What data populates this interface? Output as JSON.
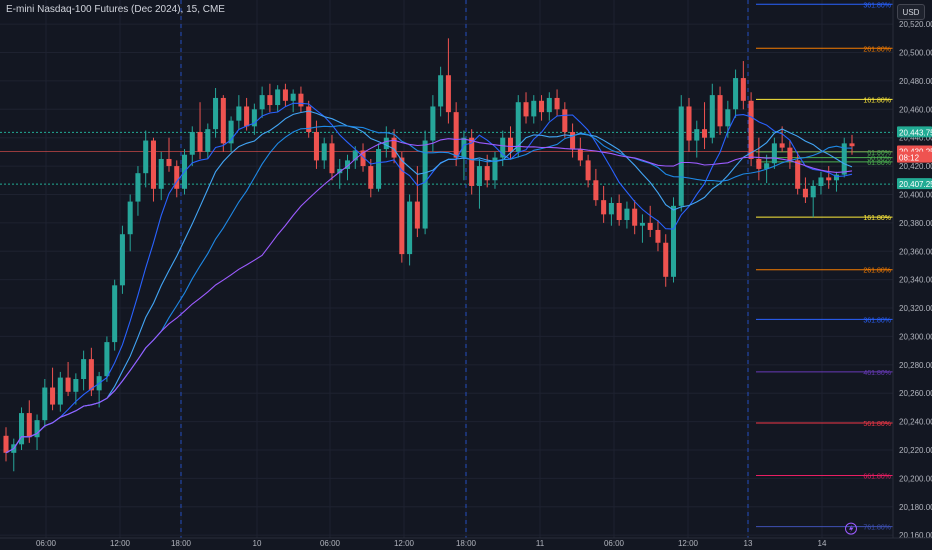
{
  "header": {
    "symbol_title": "E-mini Nasdaq-100 Futures (Dec 2024), 15, CME",
    "currency": "USD"
  },
  "colors": {
    "background": "#131722",
    "grid": "#1e2230",
    "up": "#26a69a",
    "down": "#ef5350",
    "axis_text": "#b2b5be",
    "price_line": "#ef5350",
    "green_label": "#22ab94"
  },
  "chart_data": {
    "type": "candlestick",
    "title": "E-mini Nasdaq-100 Futures (Dec 2024), 15, CME",
    "x_ticks": [
      "06:00",
      "12:00",
      "18:00",
      "10",
      "06:00",
      "12:00",
      "18:00",
      "11",
      "06:00",
      "12:00",
      "13",
      "14"
    ],
    "y_ticks": [
      "20,520.00",
      "20,500.00",
      "20,480.00",
      "20,460.00",
      "20,440.00",
      "20,420.00",
      "20,400.00",
      "20,380.00",
      "20,360.00",
      "20,340.00",
      "20,320.00",
      "20,300.00",
      "20,280.00",
      "20,260.00",
      "20,240.00",
      "20,220.00",
      "20,200.00",
      "20,180.00",
      "20,160.00"
    ],
    "y_tick_values": [
      20520,
      20500,
      20480,
      20460,
      20440,
      20420,
      20400,
      20380,
      20360,
      20340,
      20320,
      20300,
      20280,
      20260,
      20240,
      20220,
      20200,
      20180,
      20160
    ],
    "ylim": [
      20158,
      20537
    ],
    "price_labels": [
      {
        "text": "20,443.75",
        "value": 20443.75,
        "color": "#22ab94"
      },
      {
        "text": "20,430.25",
        "value": 20430.25,
        "color": "#ef5350"
      },
      {
        "text": "08:12",
        "value": 20426.0,
        "color": "#ef5350"
      },
      {
        "text": "20,407.25",
        "value": 20407.25,
        "color": "#22ab94"
      }
    ],
    "horizontal_levels": [
      {
        "value": 20443.75,
        "style": "dotted",
        "color": "#22ab94"
      },
      {
        "value": 20430.25,
        "style": "solid",
        "color": "#ef5350"
      },
      {
        "value": 20407.25,
        "style": "dotted",
        "color": "#22ab94"
      }
    ],
    "fib_levels": [
      {
        "label": "361.80%",
        "value": 20534,
        "color": "#2962ff"
      },
      {
        "label": "261.80%",
        "value": 20503,
        "color": "#f57c00"
      },
      {
        "label": "161.80%",
        "value": 20467,
        "color": "#ffeb3b"
      },
      {
        "label": "61.80%",
        "value": 20430,
        "color": "#4caf50"
      },
      {
        "label": "50.00%",
        "value": 20426,
        "color": "#4caf50"
      },
      {
        "label": "61.80%",
        "value": 20423,
        "color": "#4caf50"
      },
      {
        "label": "161.80%",
        "value": 20384,
        "color": "#ffeb3b"
      },
      {
        "label": "261.80%",
        "value": 20347,
        "color": "#f57c00"
      },
      {
        "label": "361.80%",
        "value": 20312,
        "color": "#2962ff"
      },
      {
        "label": "461.80%",
        "value": 20275,
        "color": "#673ab7"
      },
      {
        "label": "561.80%",
        "value": 20239,
        "color": "#f23645"
      },
      {
        "label": "661.80%",
        "value": 20202,
        "color": "#e91e63"
      },
      {
        "label": "761.80%",
        "value": 20166,
        "color": "#3f51b5"
      }
    ],
    "session_breaks_x": [
      "18:00",
      "18:00",
      "13"
    ],
    "candles_ohlc": [
      [
        20230,
        20236,
        20212,
        20218
      ],
      [
        20218,
        20228,
        20205,
        20224
      ],
      [
        20224,
        20250,
        20220,
        20246
      ],
      [
        20246,
        20255,
        20225,
        20229
      ],
      [
        20229,
        20245,
        20220,
        20241
      ],
      [
        20241,
        20270,
        20236,
        20264
      ],
      [
        20264,
        20278,
        20248,
        20252
      ],
      [
        20252,
        20275,
        20247,
        20271
      ],
      [
        20271,
        20282,
        20258,
        20261
      ],
      [
        20261,
        20274,
        20252,
        20270
      ],
      [
        20270,
        20290,
        20262,
        20284
      ],
      [
        20284,
        20292,
        20258,
        20262
      ],
      [
        20262,
        20275,
        20250,
        20272
      ],
      [
        20272,
        20300,
        20268,
        20296
      ],
      [
        20296,
        20340,
        20290,
        20336
      ],
      [
        20336,
        20378,
        20330,
        20372
      ],
      [
        20372,
        20400,
        20360,
        20395
      ],
      [
        20395,
        20420,
        20385,
        20415
      ],
      [
        20415,
        20445,
        20405,
        20438
      ],
      [
        20438,
        20440,
        20395,
        20404
      ],
      [
        20404,
        20430,
        20396,
        20425
      ],
      [
        20425,
        20440,
        20416,
        20420
      ],
      [
        20420,
        20424,
        20398,
        20404
      ],
      [
        20404,
        20432,
        20400,
        20428
      ],
      [
        20428,
        20448,
        20420,
        20444
      ],
      [
        20444,
        20465,
        20425,
        20430
      ],
      [
        20430,
        20450,
        20425,
        20446
      ],
      [
        20446,
        20475,
        20440,
        20468
      ],
      [
        20468,
        20470,
        20430,
        20436
      ],
      [
        20436,
        20455,
        20430,
        20452
      ],
      [
        20452,
        20470,
        20446,
        20462
      ],
      [
        20462,
        20468,
        20445,
        20448
      ],
      [
        20448,
        20464,
        20442,
        20460
      ],
      [
        20460,
        20476,
        20454,
        20470
      ],
      [
        20470,
        20478,
        20458,
        20463
      ],
      [
        20463,
        20477,
        20458,
        20474
      ],
      [
        20474,
        20478,
        20462,
        20466
      ],
      [
        20466,
        20474,
        20458,
        20471
      ],
      [
        20471,
        20476,
        20458,
        20462
      ],
      [
        20462,
        20466,
        20440,
        20444
      ],
      [
        20444,
        20452,
        20418,
        20424
      ],
      [
        20424,
        20440,
        20418,
        20436
      ],
      [
        20436,
        20442,
        20410,
        20415
      ],
      [
        20415,
        20425,
        20404,
        20418
      ],
      [
        20418,
        20428,
        20410,
        20424
      ],
      [
        20424,
        20434,
        20418,
        20431
      ],
      [
        20431,
        20436,
        20416,
        20420
      ],
      [
        20420,
        20425,
        20398,
        20404
      ],
      [
        20404,
        20436,
        20402,
        20432
      ],
      [
        20432,
        20448,
        20426,
        20440
      ],
      [
        20440,
        20446,
        20422,
        20426
      ],
      [
        20426,
        20430,
        20352,
        20358
      ],
      [
        20358,
        20400,
        20350,
        20395
      ],
      [
        20395,
        20420,
        20370,
        20376
      ],
      [
        20376,
        20445,
        20372,
        20438
      ],
      [
        20438,
        20470,
        20430,
        20462
      ],
      [
        20462,
        20490,
        20455,
        20484
      ],
      [
        20484,
        20510,
        20450,
        20458
      ],
      [
        20458,
        20465,
        20420,
        20426
      ],
      [
        20426,
        20445,
        20410,
        20440
      ],
      [
        20440,
        20446,
        20400,
        20406
      ],
      [
        20406,
        20425,
        20390,
        20420
      ],
      [
        20420,
        20428,
        20405,
        20410
      ],
      [
        20410,
        20430,
        20404,
        20426
      ],
      [
        20426,
        20445,
        20420,
        20440
      ],
      [
        20440,
        20448,
        20425,
        20430
      ],
      [
        20430,
        20470,
        20426,
        20465
      ],
      [
        20465,
        20472,
        20450,
        20455
      ],
      [
        20455,
        20470,
        20450,
        20466
      ],
      [
        20466,
        20470,
        20452,
        20458
      ],
      [
        20458,
        20472,
        20452,
        20468
      ],
      [
        20468,
        20474,
        20455,
        20460
      ],
      [
        20460,
        20465,
        20440,
        20444
      ],
      [
        20444,
        20450,
        20426,
        20432
      ],
      [
        20432,
        20440,
        20420,
        20424
      ],
      [
        20424,
        20428,
        20405,
        20410
      ],
      [
        20410,
        20418,
        20392,
        20396
      ],
      [
        20396,
        20406,
        20380,
        20386
      ],
      [
        20386,
        20398,
        20378,
        20394
      ],
      [
        20394,
        20400,
        20378,
        20382
      ],
      [
        20382,
        20395,
        20376,
        20390
      ],
      [
        20390,
        20396,
        20372,
        20378
      ],
      [
        20378,
        20386,
        20366,
        20380
      ],
      [
        20380,
        20392,
        20370,
        20375
      ],
      [
        20375,
        20382,
        20360,
        20366
      ],
      [
        20366,
        20372,
        20335,
        20342
      ],
      [
        20342,
        20398,
        20338,
        20392
      ],
      [
        20392,
        20470,
        20388,
        20462
      ],
      [
        20462,
        20468,
        20430,
        20438
      ],
      [
        20438,
        20452,
        20426,
        20446
      ],
      [
        20446,
        20465,
        20432,
        20440
      ],
      [
        20440,
        20478,
        20436,
        20470
      ],
      [
        20470,
        20476,
        20442,
        20448
      ],
      [
        20448,
        20466,
        20440,
        20460
      ],
      [
        20460,
        20488,
        20454,
        20482
      ],
      [
        20482,
        20494,
        20460,
        20466
      ],
      [
        20466,
        20472,
        20420,
        20425
      ],
      [
        20425,
        20440,
        20410,
        20418
      ],
      [
        20418,
        20428,
        20408,
        20422
      ],
      [
        20422,
        20440,
        20418,
        20436
      ],
      [
        20436,
        20448,
        20430,
        20433
      ],
      [
        20433,
        20438,
        20418,
        20424
      ],
      [
        20424,
        20430,
        20400,
        20404
      ],
      [
        20404,
        20412,
        20394,
        20398
      ],
      [
        20398,
        20410,
        20384,
        20406
      ],
      [
        20406,
        20416,
        20400,
        20412
      ],
      [
        20412,
        20420,
        20404,
        20410
      ],
      [
        20410,
        20416,
        20402,
        20414
      ],
      [
        20414,
        20440,
        20412,
        20436
      ],
      [
        20436,
        20442,
        20428,
        20434
      ]
    ],
    "moving_averages": [
      {
        "name": "",
        "color": "#2962ff",
        "period": 8
      },
      {
        "name": "",
        "color": "#42a5f5",
        "period": 14
      },
      {
        "name": "",
        "color": "#1e88e5",
        "period": 21
      },
      {
        "name": "",
        "color": "#9c5bff",
        "period": 34
      }
    ]
  }
}
